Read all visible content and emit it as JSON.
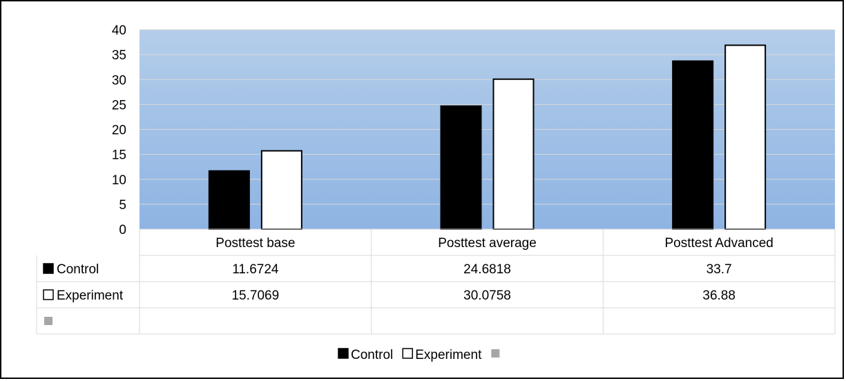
{
  "chart_data": {
    "type": "bar",
    "categories": [
      "Posttest base",
      "Posttest average",
      "Posttest Advanced"
    ],
    "series": [
      {
        "name": "Control",
        "values": [
          11.6724,
          24.6818,
          33.7
        ],
        "color": "#000000"
      },
      {
        "name": "Experiment",
        "values": [
          15.7069,
          30.0758,
          36.88
        ],
        "color": "#ffffff"
      }
    ],
    "extra_series_color": "#a6a6a6",
    "ylim": [
      0,
      40
    ],
    "yticks": [
      0,
      5,
      10,
      15,
      20,
      25,
      30,
      35,
      40
    ],
    "grid": true,
    "data_table": true,
    "legend_position": "bottom",
    "plot_background": [
      "#b4cdea",
      "#8eb4e3"
    ]
  }
}
